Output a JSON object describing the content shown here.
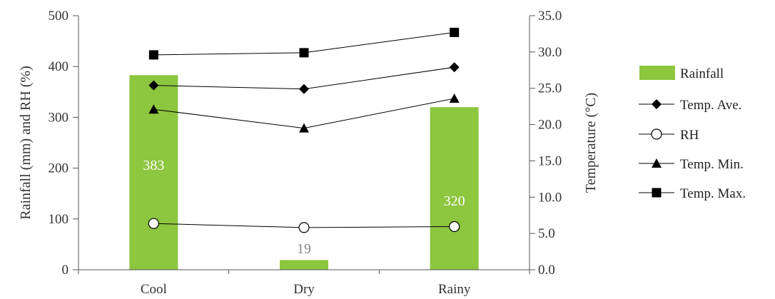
{
  "chart_data": {
    "type": "bar",
    "categories": [
      "Cool",
      "Dry",
      "Rainy"
    ],
    "ylabel": "Rainfall (mm) and RH (%)",
    "y2label": "Temperature (°C)",
    "ylim": [
      0,
      500
    ],
    "y2lim": [
      0,
      35
    ],
    "yticks": [
      "0",
      "100",
      "200",
      "300",
      "400",
      "500"
    ],
    "y2ticks": [
      "0.0",
      "5.0",
      "10.0",
      "15.0",
      "20.0",
      "25.0",
      "30.0",
      "35.0"
    ],
    "grid": false,
    "legend_position": "right",
    "series": [
      {
        "name": "Rainfall",
        "type": "bar",
        "axis": "left",
        "values": [
          383,
          19,
          320
        ],
        "data_labels": [
          "383",
          "19",
          "320"
        ],
        "color": "#8dc63f"
      },
      {
        "name": "Temp. Ave.",
        "type": "line",
        "axis": "right",
        "marker": "diamond",
        "values": [
          25.4,
          24.9,
          27.9
        ]
      },
      {
        "name": "RH",
        "type": "line",
        "axis": "left",
        "marker": "circle",
        "values": [
          91,
          83,
          85
        ]
      },
      {
        "name": "Temp. Min.",
        "type": "line",
        "axis": "right",
        "marker": "triangle",
        "values": [
          22.1,
          19.5,
          23.6
        ]
      },
      {
        "name": "Temp. Max.",
        "type": "line",
        "axis": "right",
        "marker": "square",
        "values": [
          29.6,
          29.9,
          32.7
        ]
      }
    ]
  }
}
